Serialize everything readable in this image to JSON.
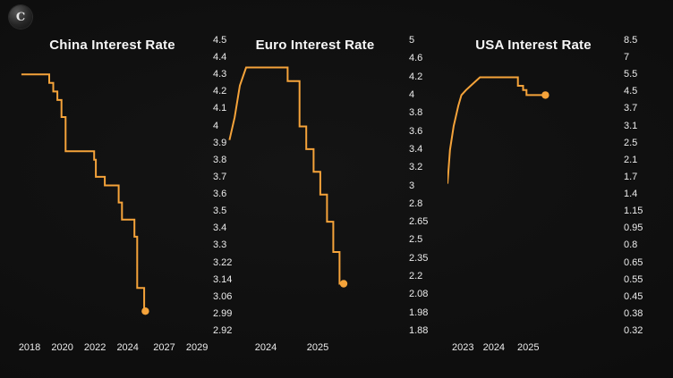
{
  "logo": {
    "letter": "C"
  },
  "theme": {
    "background": "#0d0d0d",
    "line_color": "#f5a33a",
    "title_color": "#f7f7f7",
    "tick_color": "#ececec"
  },
  "chart_data": [
    {
      "type": "line",
      "title": "China Interest Rate",
      "legend_position": "none",
      "grid": false,
      "marker_end": true,
      "y_ticks": [
        "4.5",
        "4.4",
        "4.3",
        "4.2",
        "4.1",
        "4",
        "3.9",
        "3.8",
        "3.7",
        "3.6",
        "3.5",
        "3.4",
        "3.3",
        "3.22",
        "3.14",
        "3.06",
        "2.99",
        "2.92"
      ],
      "x_ticks": [
        {
          "label": "2018",
          "fx": 0.07
        },
        {
          "label": "2020",
          "fx": 0.24
        },
        {
          "label": "2022",
          "fx": 0.41
        },
        {
          "label": "2024",
          "fx": 0.58
        },
        {
          "label": "2027",
          "fx": 0.77
        },
        {
          "label": "2029",
          "fx": 0.94
        }
      ],
      "series": {
        "points": [
          {
            "t": 2017.5,
            "v": 4.3
          },
          {
            "t": 2019.2,
            "v": 4.3
          },
          {
            "t": 2019.2,
            "v": 4.25
          },
          {
            "t": 2019.45,
            "v": 4.25
          },
          {
            "t": 2019.45,
            "v": 4.2
          },
          {
            "t": 2019.7,
            "v": 4.2
          },
          {
            "t": 2019.7,
            "v": 4.15
          },
          {
            "t": 2019.95,
            "v": 4.15
          },
          {
            "t": 2019.95,
            "v": 4.05
          },
          {
            "t": 2020.2,
            "v": 4.05
          },
          {
            "t": 2020.2,
            "v": 3.85
          },
          {
            "t": 2021.95,
            "v": 3.85
          },
          {
            "t": 2021.95,
            "v": 3.8
          },
          {
            "t": 2022.05,
            "v": 3.8
          },
          {
            "t": 2022.05,
            "v": 3.7
          },
          {
            "t": 2022.6,
            "v": 3.7
          },
          {
            "t": 2022.6,
            "v": 3.65
          },
          {
            "t": 2023.45,
            "v": 3.65
          },
          {
            "t": 2023.45,
            "v": 3.55
          },
          {
            "t": 2023.65,
            "v": 3.55
          },
          {
            "t": 2023.65,
            "v": 3.45
          },
          {
            "t": 2024.55,
            "v": 3.45
          },
          {
            "t": 2024.55,
            "v": 3.35
          },
          {
            "t": 2024.78,
            "v": 3.35
          },
          {
            "t": 2024.78,
            "v": 3.1
          },
          {
            "t": 2025.35,
            "v": 3.1
          },
          {
            "t": 2025.35,
            "v": 3.0
          },
          {
            "t": 2025.45,
            "v": 3.0
          }
        ]
      }
    },
    {
      "type": "line",
      "title": "Euro Interest Rate",
      "legend_position": "none",
      "grid": false,
      "marker_end": true,
      "y_ticks": [
        "5",
        "4.6",
        "4.2",
        "4",
        "3.8",
        "3.6",
        "3.4",
        "3.2",
        "3",
        "2.8",
        "2.65",
        "2.5",
        "2.35",
        "2.2",
        "2.08",
        "1.98",
        "1.88"
      ],
      "x_ticks": [
        {
          "label": "2024",
          "fx": 0.225
        },
        {
          "label": "2025",
          "fx": 0.515
        }
      ],
      "series": {
        "points": [
          {
            "t": 2023.3,
            "v": 3.5
          },
          {
            "t": 2023.4,
            "v": 3.75
          },
          {
            "t": 2023.5,
            "v": 4.1
          },
          {
            "t": 2023.62,
            "v": 4.4
          },
          {
            "t": 2024.42,
            "v": 4.4
          },
          {
            "t": 2024.42,
            "v": 4.15
          },
          {
            "t": 2024.65,
            "v": 4.15
          },
          {
            "t": 2024.65,
            "v": 3.65
          },
          {
            "t": 2024.78,
            "v": 3.65
          },
          {
            "t": 2024.78,
            "v": 3.4
          },
          {
            "t": 2024.92,
            "v": 3.4
          },
          {
            "t": 2024.92,
            "v": 3.15
          },
          {
            "t": 2025.05,
            "v": 3.15
          },
          {
            "t": 2025.05,
            "v": 2.9
          },
          {
            "t": 2025.18,
            "v": 2.9
          },
          {
            "t": 2025.18,
            "v": 2.65
          },
          {
            "t": 2025.3,
            "v": 2.65
          },
          {
            "t": 2025.3,
            "v": 2.4
          },
          {
            "t": 2025.42,
            "v": 2.4
          },
          {
            "t": 2025.42,
            "v": 2.15
          },
          {
            "t": 2025.5,
            "v": 2.15
          }
        ]
      }
    },
    {
      "type": "line",
      "title": "USA Interest Rate",
      "legend_position": "none",
      "grid": false,
      "marker_end": true,
      "y_ticks": [
        "8.5",
        "7",
        "5.5",
        "4.5",
        "3.7",
        "3.1",
        "2.5",
        "2.1",
        "1.7",
        "1.4",
        "1.15",
        "0.95",
        "0.8",
        "0.65",
        "0.55",
        "0.45",
        "0.38",
        "0.32"
      ],
      "x_ticks": [
        {
          "label": "2023",
          "fx": 0.09
        },
        {
          "label": "2024",
          "fx": 0.27
        },
        {
          "label": "2025",
          "fx": 0.47
        }
      ],
      "series": {
        "points": [
          {
            "t": 2022.5,
            "v": 1.58
          },
          {
            "t": 2022.58,
            "v": 2.33
          },
          {
            "t": 2022.7,
            "v": 3.08
          },
          {
            "t": 2022.85,
            "v": 3.83
          },
          {
            "t": 2022.95,
            "v": 4.33
          },
          {
            "t": 2023.1,
            "v": 4.58
          },
          {
            "t": 2023.25,
            "v": 4.83
          },
          {
            "t": 2023.4,
            "v": 5.08
          },
          {
            "t": 2023.55,
            "v": 5.33
          },
          {
            "t": 2024.7,
            "v": 5.33
          },
          {
            "t": 2024.7,
            "v": 4.83
          },
          {
            "t": 2024.85,
            "v": 4.83
          },
          {
            "t": 2024.85,
            "v": 4.58
          },
          {
            "t": 2024.95,
            "v": 4.58
          },
          {
            "t": 2024.95,
            "v": 4.33
          },
          {
            "t": 2025.5,
            "v": 4.33
          }
        ]
      }
    }
  ]
}
